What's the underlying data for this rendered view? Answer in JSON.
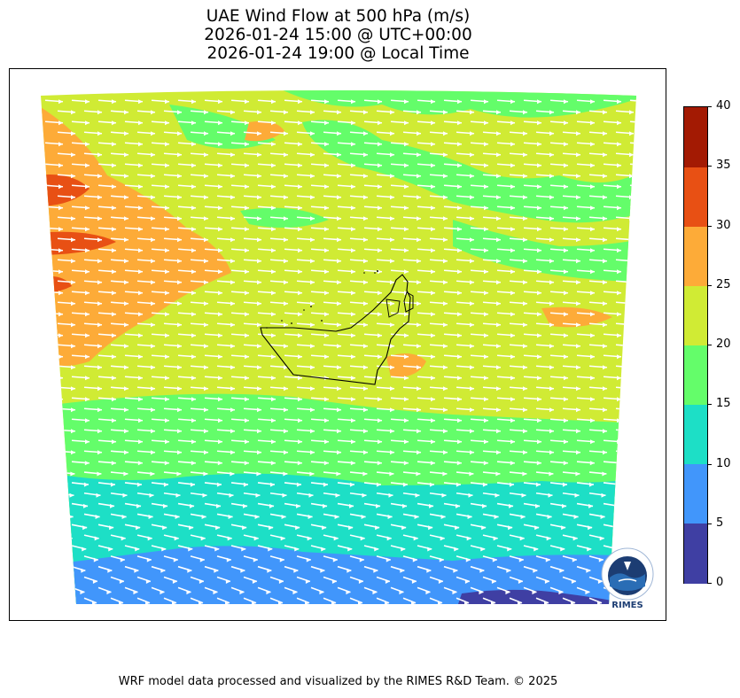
{
  "title": {
    "line1": "UAE Wind Flow at 500 hPa (m/s)",
    "line2": "2026-01-24 15:00 @ UTC+00:00",
    "line3": "2026-01-24 19:00 @ Local Time"
  },
  "colorbar": {
    "ticks": [
      "0",
      "5",
      "10",
      "15",
      "20",
      "25",
      "30",
      "35",
      "40"
    ],
    "levels": [
      {
        "range": [
          0,
          5
        ],
        "color": "#3f3fa3"
      },
      {
        "range": [
          5,
          10
        ],
        "color": "#4196fb"
      },
      {
        "range": [
          10,
          15
        ],
        "color": "#1ddfc6"
      },
      {
        "range": [
          15,
          20
        ],
        "color": "#64fd6a"
      },
      {
        "range": [
          20,
          25
        ],
        "color": "#d0eb34"
      },
      {
        "range": [
          25,
          30
        ],
        "color": "#fdab38"
      },
      {
        "range": [
          30,
          35
        ],
        "color": "#e85014"
      },
      {
        "range": [
          35,
          40
        ],
        "color": "#a31a03"
      }
    ]
  },
  "logo": {
    "text": "RIMES",
    "arc_text": "Multi-Hazard Early Warning System"
  },
  "footer": "WRF model data processed and visualized by the RIMES R&D Team. © 2025"
}
